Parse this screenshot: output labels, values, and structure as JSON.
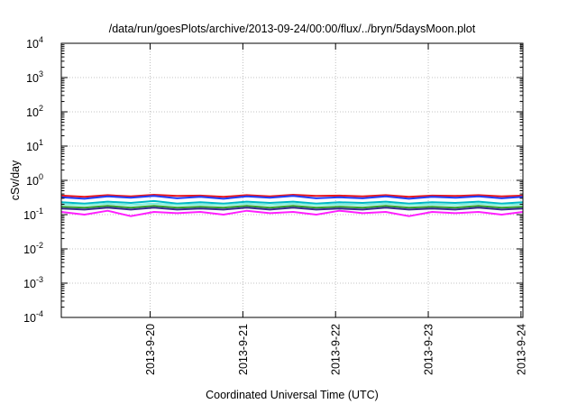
{
  "chart_data": {
    "type": "line",
    "title": "/data/run/goesPlots/archive/2013-09-24/00:00/flux/../bryn/5daysMoon.plot",
    "xlabel": "Coordinated Universal Time (UTC)",
    "ylabel": "cSv/day",
    "scale": {
      "y": "log"
    },
    "xlim": [
      "2013-09-19 01:00",
      "2013-09-24 00:30"
    ],
    "ylim": [
      0.0001,
      10000
    ],
    "x_ticks": [
      "2013-9-20",
      "2013-9-21",
      "2013-9-22",
      "2013-9-23",
      "2013-9-24"
    ],
    "y_ticks": [
      {
        "base": "10",
        "exp": "4"
      },
      {
        "base": "10",
        "exp": "3"
      },
      {
        "base": "10",
        "exp": "2"
      },
      {
        "base": "10",
        "exp": "1"
      },
      {
        "base": "10",
        "exp": "0"
      },
      {
        "base": "10",
        "exp": "-1"
      },
      {
        "base": "10",
        "exp": "-2"
      },
      {
        "base": "10",
        "exp": "-3"
      },
      {
        "base": "10",
        "exp": "-4"
      }
    ],
    "grid": true,
    "x": [
      "2013-09-19 01:00",
      "2013-09-19 07:00",
      "2013-09-19 13:00",
      "2013-09-19 19:00",
      "2013-09-20 01:00",
      "2013-09-20 07:00",
      "2013-09-20 13:00",
      "2013-09-20 19:00",
      "2013-09-21 01:00",
      "2013-09-21 07:00",
      "2013-09-21 13:00",
      "2013-09-21 19:00",
      "2013-09-22 01:00",
      "2013-09-22 07:00",
      "2013-09-22 13:00",
      "2013-09-22 19:00",
      "2013-09-23 01:00",
      "2013-09-23 07:00",
      "2013-09-23 13:00",
      "2013-09-23 19:00",
      "2013-09-24 00:30"
    ],
    "series": [
      {
        "color": "#e8171e",
        "values": [
          0.36,
          0.33,
          0.37,
          0.34,
          0.38,
          0.35,
          0.36,
          0.33,
          0.37,
          0.34,
          0.38,
          0.35,
          0.36,
          0.34,
          0.37,
          0.33,
          0.36,
          0.35,
          0.37,
          0.34,
          0.36
        ]
      },
      {
        "color": "#1f3fff",
        "values": [
          0.32,
          0.29,
          0.34,
          0.31,
          0.35,
          0.3,
          0.33,
          0.29,
          0.34,
          0.31,
          0.35,
          0.3,
          0.32,
          0.3,
          0.34,
          0.29,
          0.33,
          0.31,
          0.34,
          0.3,
          0.33
        ]
      },
      {
        "color": "#00b7c4",
        "values": [
          0.23,
          0.21,
          0.24,
          0.22,
          0.25,
          0.21,
          0.23,
          0.21,
          0.24,
          0.22,
          0.24,
          0.21,
          0.23,
          0.22,
          0.24,
          0.21,
          0.23,
          0.22,
          0.24,
          0.21,
          0.23
        ]
      },
      {
        "color": "#7cf0dc",
        "values": [
          0.2,
          0.19,
          0.21,
          0.19,
          0.21,
          0.19,
          0.2,
          0.19,
          0.21,
          0.19,
          0.21,
          0.19,
          0.2,
          0.19,
          0.21,
          0.19,
          0.2,
          0.19,
          0.21,
          0.19,
          0.2
        ]
      },
      {
        "color": "#2ea02e",
        "values": [
          0.17,
          0.16,
          0.18,
          0.16,
          0.18,
          0.16,
          0.17,
          0.16,
          0.18,
          0.16,
          0.18,
          0.16,
          0.17,
          0.16,
          0.18,
          0.16,
          0.17,
          0.16,
          0.18,
          0.16,
          0.17
        ]
      },
      {
        "color": "#3a2a8f",
        "values": [
          0.15,
          0.14,
          0.16,
          0.14,
          0.16,
          0.14,
          0.15,
          0.14,
          0.16,
          0.14,
          0.16,
          0.14,
          0.15,
          0.14,
          0.16,
          0.14,
          0.15,
          0.14,
          0.16,
          0.14,
          0.15
        ]
      },
      {
        "color": "#ff1fff",
        "values": [
          0.12,
          0.1,
          0.13,
          0.09,
          0.12,
          0.11,
          0.12,
          0.1,
          0.13,
          0.11,
          0.12,
          0.1,
          0.13,
          0.11,
          0.12,
          0.09,
          0.12,
          0.11,
          0.12,
          0.1,
          0.12
        ]
      }
    ]
  }
}
